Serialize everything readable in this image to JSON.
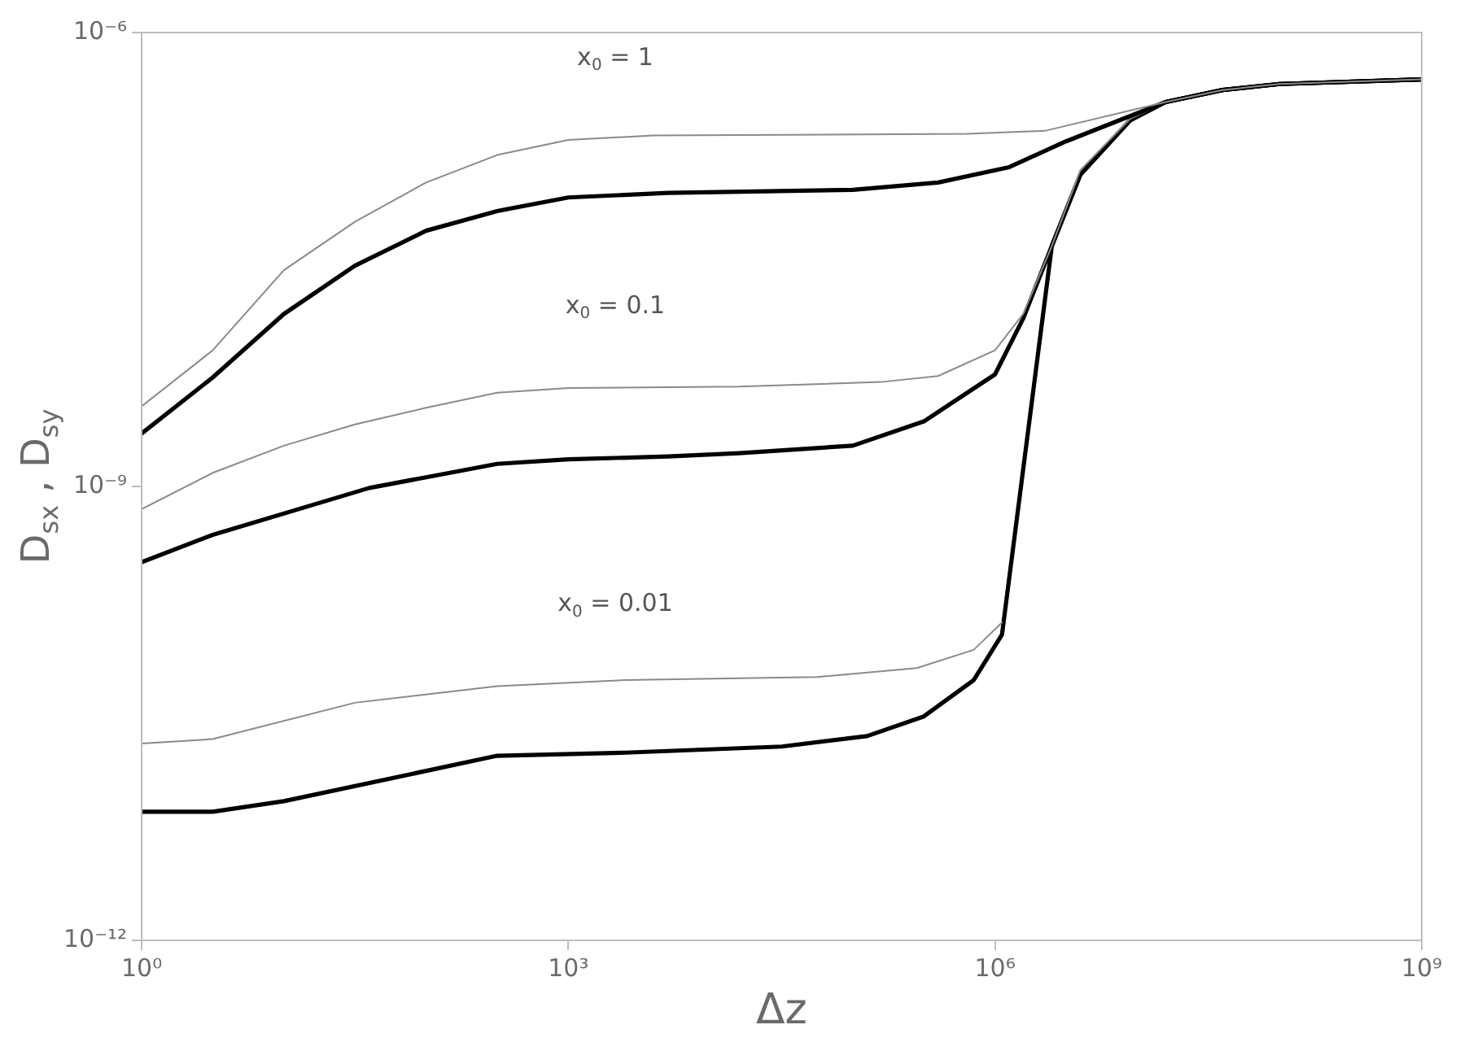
{
  "chart_data": {
    "type": "line",
    "xlabel": "Δz",
    "ylabel": "D$_{sx}$ , D$_{sy}$",
    "log": "xy",
    "grid": false,
    "legend": false,
    "marker": "none",
    "line_style": "solid",
    "xlim": [
      1,
      1000000000
    ],
    "xticks": [
      {
        "value": 1,
        "label": "10⁰"
      },
      {
        "value": 1000,
        "label": "10³"
      },
      {
        "value": 1000000,
        "label": "10⁶"
      },
      {
        "value": 1000000000,
        "label": "10⁹"
      }
    ],
    "ylim": [
      1e-12,
      1e-06
    ],
    "yticks": [
      {
        "value": 1e-12,
        "label": "10⁻¹²"
      },
      {
        "value": 1e-09,
        "label": "10⁻⁹"
      },
      {
        "value": 1e-06,
        "label": "10⁻⁶"
      }
    ],
    "annotations": [
      "x$_{0}$ = 1",
      "x$_{0}$ = 0.1",
      "x$_{0}$ = 0.01"
    ],
    "series": [
      {
        "color": "#8a8a8a",
        "x": [
          1,
          3.16,
          10,
          31.6,
          100,
          316,
          1000,
          3980,
          631000,
          2240000,
          15800000,
          39800000,
          100000000,
          1000000000
        ],
        "values": [
          3.39e-09,
          7.94e-09,
          2.69e-08,
          5.62e-08,
          1.02e-07,
          1.55e-07,
          1.95e-07,
          2.09e-07,
          2.14e-07,
          2.24e-07,
          3.47e-07,
          4.17e-07,
          4.57e-07,
          4.9e-07
        ]
      },
      {
        "color": "#000000",
        "x": [
          1,
          3.16,
          10,
          31.6,
          100,
          316,
          1000,
          5010,
          100000,
          398000,
          1260000,
          3160000,
          15800000,
          39800000,
          100000000,
          1000000000
        ],
        "values": [
          2.24e-09,
          5.25e-09,
          1.38e-08,
          2.88e-08,
          4.9e-08,
          6.61e-08,
          8.13e-08,
          8.71e-08,
          9.12e-08,
          1.02e-07,
          1.29e-07,
          1.91e-07,
          3.47e-07,
          4.17e-07,
          4.57e-07,
          4.9e-07
        ]
      },
      {
        "color": "#8a8a8a",
        "x": [
          1,
          3.16,
          10,
          31.6,
          100,
          316,
          1000,
          15800,
          158000,
          398000,
          1000000,
          1580000,
          2510000,
          3980000,
          8910000,
          15800000,
          39800000,
          100000000,
          1000000000
        ],
        "values": [
          7.08e-10,
          1.23e-09,
          1.86e-09,
          2.57e-09,
          3.31e-09,
          4.17e-09,
          4.47e-09,
          4.57e-09,
          4.9e-09,
          5.37e-09,
          7.94e-09,
          1.38e-08,
          3.89e-08,
          1.23e-07,
          2.69e-07,
          3.47e-07,
          4.17e-07,
          4.57e-07,
          4.9e-07
        ]
      },
      {
        "color": "#000000",
        "x": [
          1,
          3.16,
          39.8,
          100,
          316,
          1000,
          5010,
          15800,
          100000,
          316000,
          1000000,
          1580000,
          2510000,
          3980000,
          8910000,
          15800000,
          39800000,
          100000000,
          1000000000
        ],
        "values": [
          3.16e-10,
          4.79e-10,
          9.77e-10,
          1.15e-09,
          1.41e-09,
          1.51e-09,
          1.58e-09,
          1.66e-09,
          1.86e-09,
          2.69e-09,
          5.5e-09,
          1.29e-08,
          3.89e-08,
          1.15e-07,
          2.63e-07,
          3.47e-07,
          4.17e-07,
          4.57e-07,
          4.9e-07
        ]
      },
      {
        "color": "#8a8a8a",
        "x": [
          1,
          3.16,
          31.6,
          316,
          2510,
          56200,
          282000,
          708000,
          1120000
        ],
        "values": [
          2e-11,
          2.14e-11,
          3.72e-11,
          4.79e-11,
          5.25e-11,
          5.5e-11,
          6.31e-11,
          8.32e-11,
          1.26e-10
        ]
      },
      {
        "color": "#000000",
        "x": [
          1,
          3.16,
          10,
          316,
          2510,
          31600,
          126000,
          316000,
          708000,
          1120000,
          2510000,
          3980000,
          8910000,
          15800000,
          39800000,
          100000000,
          1000000000
        ],
        "values": [
          7.08e-12,
          7.08e-12,
          8.32e-12,
          1.66e-11,
          1.74e-11,
          1.91e-11,
          2.24e-11,
          3.02e-11,
          5.25e-11,
          1.05e-10,
          3.89e-08,
          1.15e-07,
          2.63e-07,
          3.47e-07,
          4.17e-07,
          4.57e-07,
          4.9e-07
        ]
      }
    ]
  }
}
